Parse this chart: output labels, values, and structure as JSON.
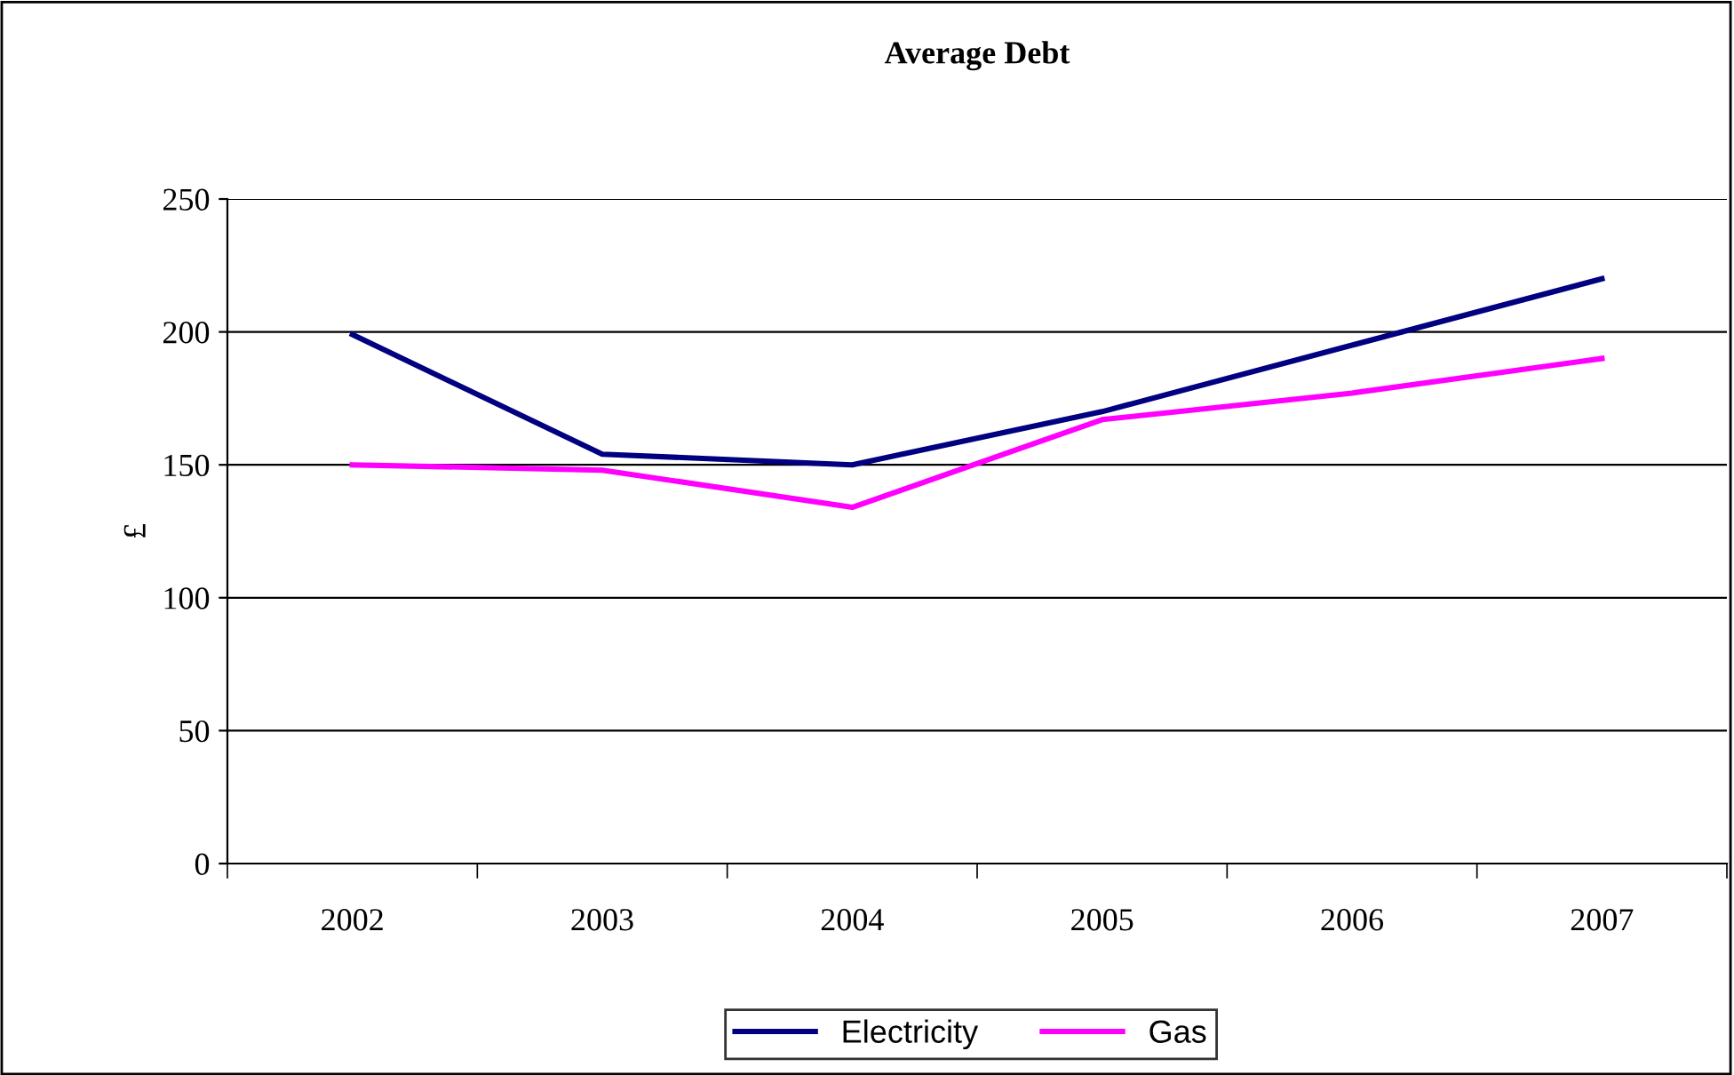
{
  "chart_data": {
    "type": "line",
    "title": "Average Debt",
    "ylabel": "£",
    "categories": [
      "2002",
      "2003",
      "2004",
      "2005",
      "2006",
      "2007"
    ],
    "series": [
      {
        "name": "Electricity",
        "color": "#000080",
        "values": [
          199,
          154,
          150,
          170,
          195,
          220
        ]
      },
      {
        "name": "Gas",
        "color": "#ff00ff",
        "values": [
          150,
          148,
          134,
          167,
          177,
          190
        ]
      }
    ],
    "ylim": [
      0,
      250
    ],
    "yticks": [
      0,
      50,
      100,
      150,
      200,
      250
    ],
    "grid": "y",
    "legend": "bottom",
    "marker": "none",
    "line_style": "solid"
  }
}
